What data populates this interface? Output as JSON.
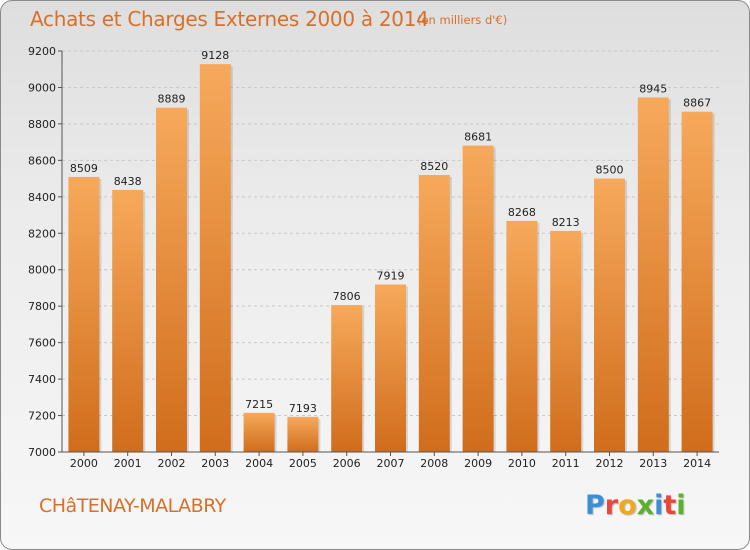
{
  "header": {
    "title": "Achats et Charges Externes 2000 à 2014",
    "subtitle": "(en milliers d'€)"
  },
  "footer": {
    "city": "CHâTENAY-MALABRY",
    "logo": {
      "letters": [
        "P",
        "r",
        "o",
        "x",
        "i",
        "t",
        "i"
      ],
      "colors": [
        "#3a8fd6",
        "#e8483a",
        "#f2a81d",
        "#5cb030",
        "#3a8fd6",
        "#e8483a",
        "#5cb030"
      ]
    }
  },
  "colors": {
    "text_accent": "#d8702a",
    "bar_top": "#f7a95b",
    "bar_bottom": "#d06d1c",
    "grid": "#c8c8c8"
  },
  "chart_data": {
    "type": "bar",
    "title": "Achats et Charges Externes 2000 à 2014",
    "subtitle": "(en milliers d'€)",
    "xlabel": "",
    "ylabel": "",
    "categories": [
      "2000",
      "2001",
      "2002",
      "2003",
      "2004",
      "2005",
      "2006",
      "2007",
      "2008",
      "2009",
      "2010",
      "2011",
      "2012",
      "2013",
      "2014"
    ],
    "values": [
      8509,
      8438,
      8889,
      9128,
      7215,
      7193,
      7806,
      7919,
      8520,
      8681,
      8268,
      8213,
      8500,
      8945,
      8867
    ],
    "value_labels": [
      "8509",
      "8438",
      "8889",
      "9128",
      "7215",
      "7193",
      "7806",
      "7919",
      "8520",
      "8681",
      "8268",
      "8213",
      "8500",
      "8945",
      "8867"
    ],
    "ylim": [
      7000,
      9200
    ],
    "yticks": [
      "7000",
      "7200",
      "7400",
      "7600",
      "7800",
      "8000",
      "8200",
      "8400",
      "8600",
      "8800",
      "9000",
      "9200"
    ],
    "grid": "horizontal dashed",
    "legend": "none"
  }
}
